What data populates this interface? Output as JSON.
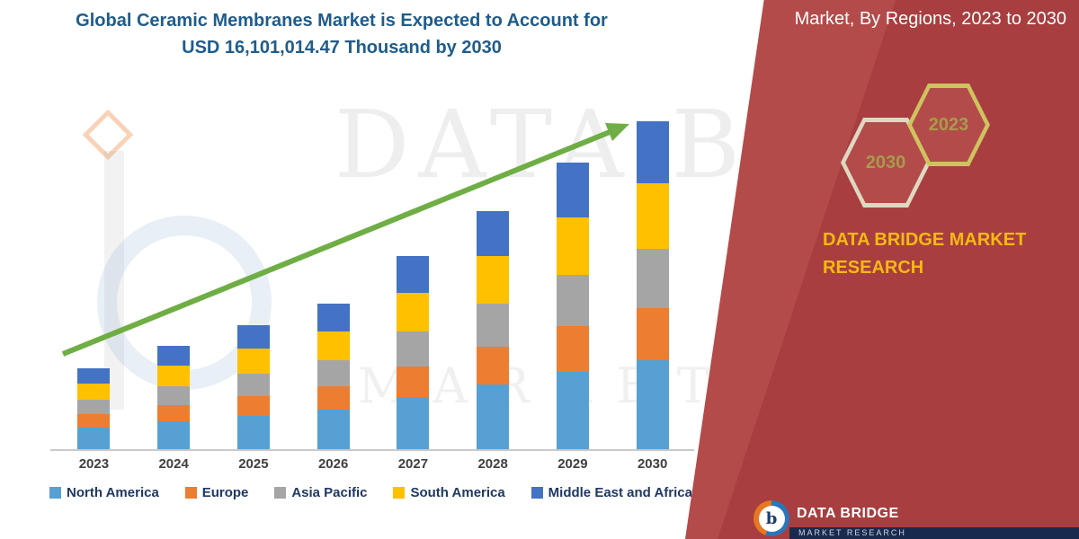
{
  "header": {
    "chart_title_line1": "Global Ceramic Membranes Market is Expected to Account for",
    "chart_title_line2": "USD 16,101,014.47 Thousand by 2030",
    "panel_title": "Market, By Regions, 2023 to 2030",
    "title_color": "#1F5C8C"
  },
  "watermark": {
    "line1": "DATA BRID",
    "line2": "MARKET RE"
  },
  "side_panel": {
    "hexagon_back": "2030",
    "hexagon_front": "2023",
    "brand_text_line1": "DATA BRIDGE MARKET",
    "brand_text_line2": "RESEARCH",
    "colors": {
      "panel_red": "#B34B4B",
      "panel_red_deep": "#A83E3F",
      "brand_yellow": "#F5B914",
      "hexagon_text": "#A89B4A"
    }
  },
  "footer_logo": {
    "logo_letter": "b",
    "brand": "DATA BRIDGE",
    "sub_brand": "MARKET RESEARCH"
  },
  "chart_data": {
    "type": "bar",
    "stacked": true,
    "title": "Global Ceramic Membranes Market is Expected to Account for USD 16,101,014.47 Thousand by 2030",
    "xlabel": "",
    "ylabel": "",
    "categories": [
      "2023",
      "2024",
      "2025",
      "2026",
      "2027",
      "2028",
      "2029",
      "2030"
    ],
    "series": [
      {
        "name": "North America",
        "color": "#56A0D3",
        "values": [
          6.7,
          8.5,
          10.2,
          12.1,
          15.9,
          19.6,
          23.5,
          27.0
        ]
      },
      {
        "name": "Europe",
        "color": "#ED7D31",
        "values": [
          4.0,
          5.0,
          6.0,
          7.2,
          9.4,
          11.6,
          13.9,
          16.0
        ]
      },
      {
        "name": "Asia Pacific",
        "color": "#A5A5A5",
        "values": [
          4.4,
          5.7,
          6.8,
          8.0,
          10.6,
          13.1,
          15.7,
          18.0
        ]
      },
      {
        "name": "South America",
        "color": "#FFC000",
        "values": [
          4.9,
          6.3,
          7.6,
          8.9,
          11.8,
          14.5,
          17.4,
          20.0
        ]
      },
      {
        "name": "Middle East and Africa",
        "color": "#4472C4",
        "values": [
          4.7,
          6.0,
          7.2,
          8.5,
          11.2,
          13.8,
          16.6,
          19.0
        ]
      }
    ],
    "value_axis": {
      "visible": false,
      "max": 100,
      "units": "relative index (2030 total = 100); source chart shows no y-axis labels"
    },
    "annotations": [
      {
        "type": "trend-arrow",
        "color": "#6FAE44",
        "from_category": "2023",
        "to_category": "2030",
        "direction": "up"
      }
    ],
    "legend_position": "bottom",
    "grid": false
  }
}
